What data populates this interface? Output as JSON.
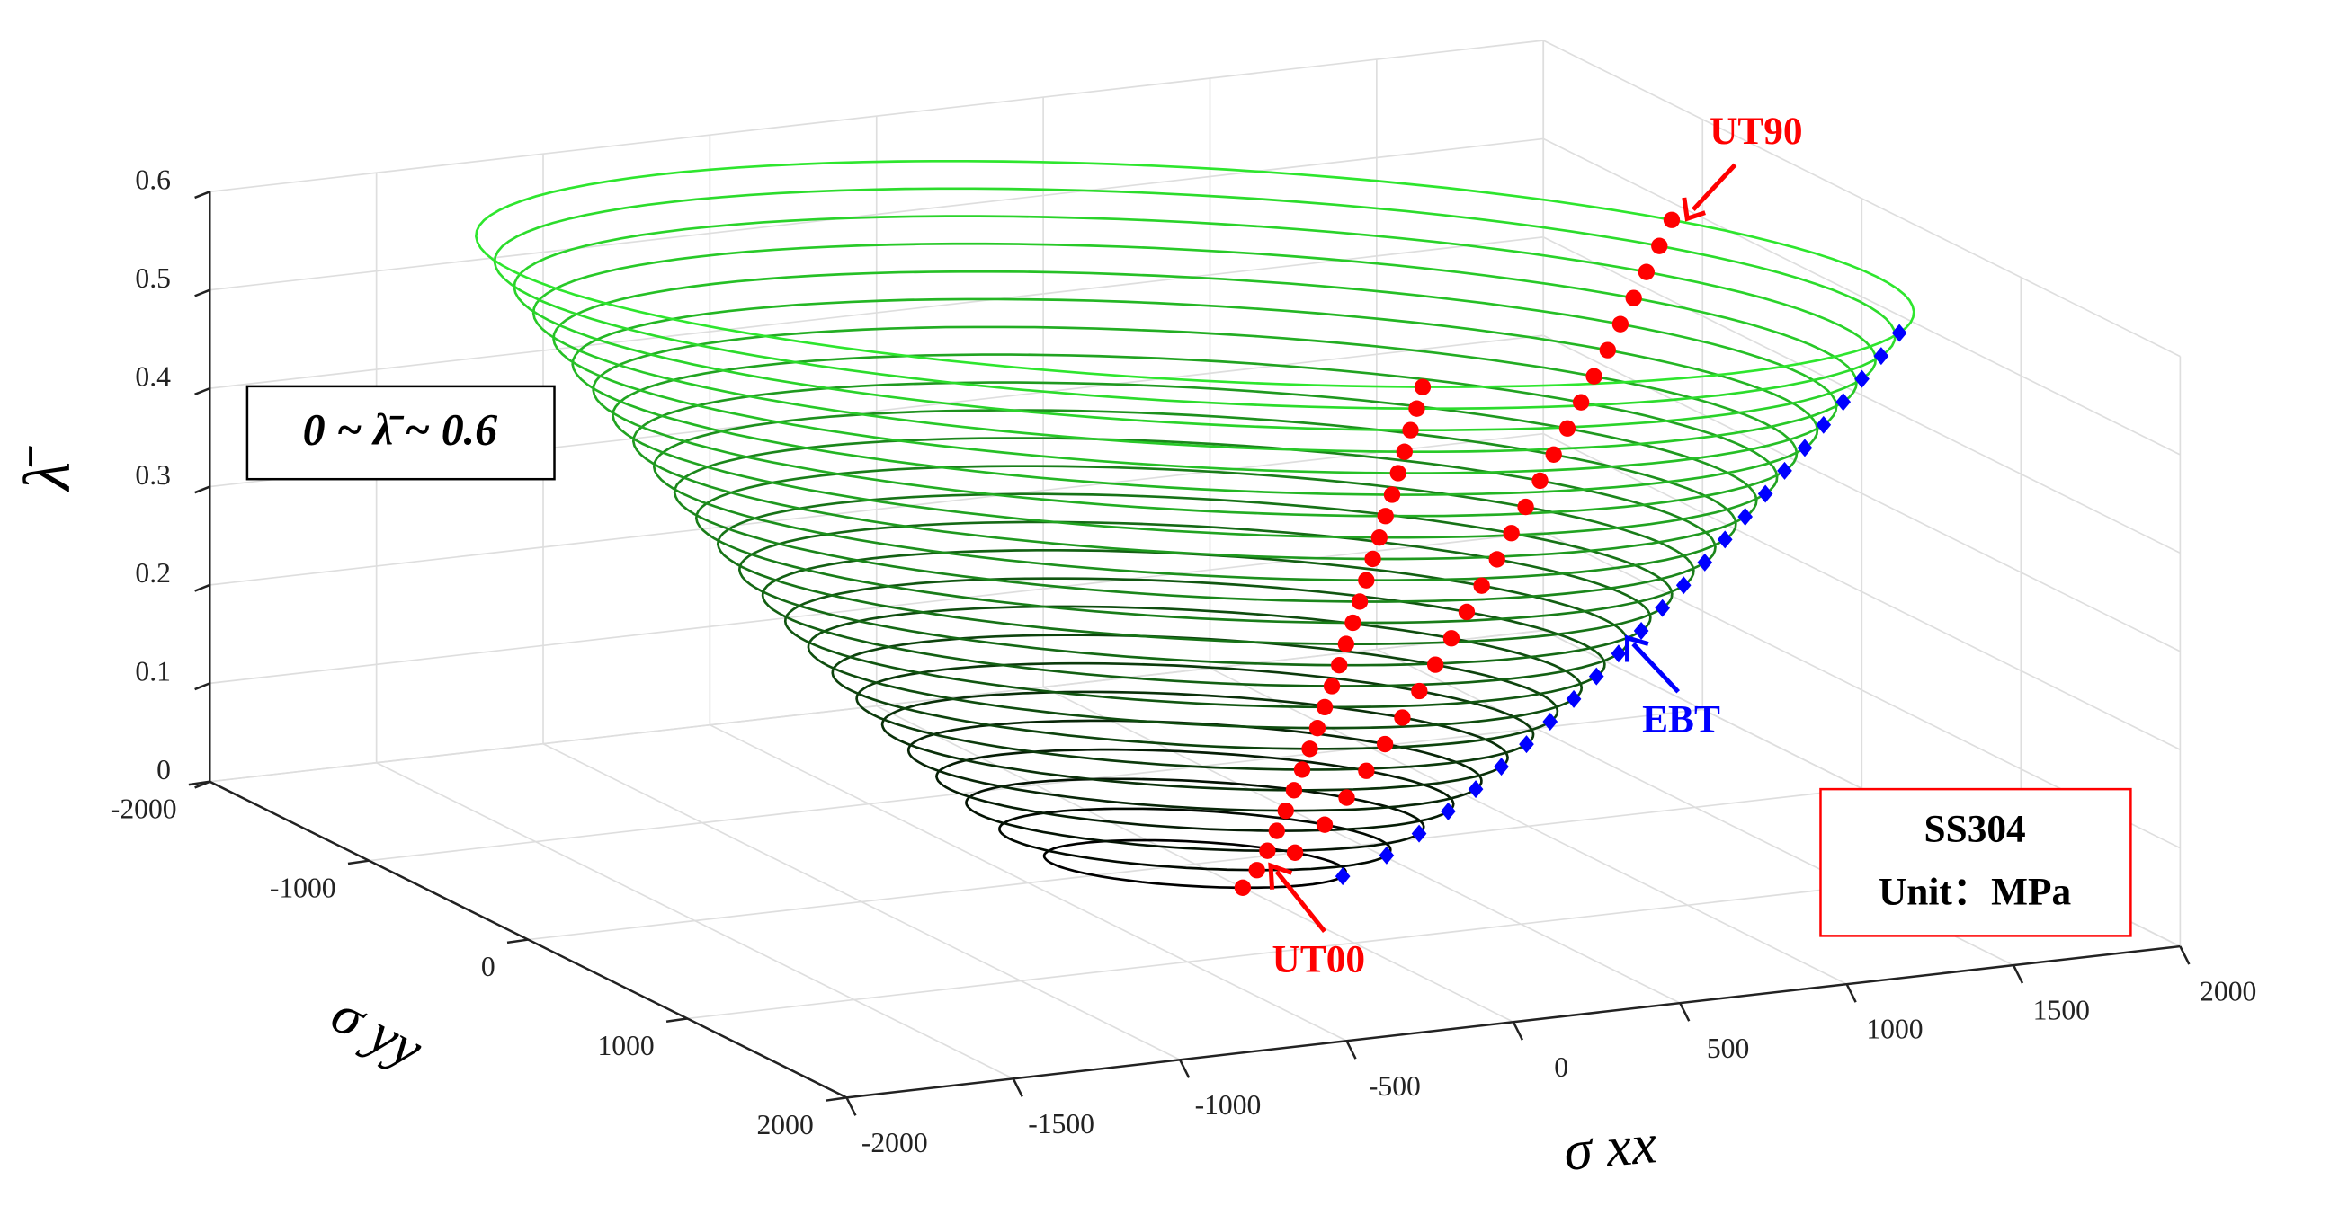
{
  "chart_data": {
    "type": "contour3d",
    "xlabel": "σ xx",
    "ylabel": "σ yy",
    "zlabel": "λ̄",
    "xlim": [
      -2000,
      2000
    ],
    "ylim": [
      -2000,
      2000
    ],
    "zlim": [
      0,
      0.6
    ],
    "xticks": [
      -2000,
      -1500,
      -1000,
      -500,
      0,
      500,
      1000,
      1500,
      2000
    ],
    "yticks": [
      -2000,
      -1000,
      0,
      1000,
      2000
    ],
    "zticks": [
      0,
      0.1,
      0.2,
      0.3,
      0.4,
      0.5,
      0.6
    ],
    "grid": true,
    "colormap": [
      "#000000",
      "#2ee62e"
    ],
    "contours": {
      "levels": [
        0,
        0.025,
        0.05,
        0.075,
        0.1,
        0.125,
        0.15,
        0.175,
        0.2,
        0.225,
        0.25,
        0.275,
        0.3,
        0.325,
        0.35,
        0.375,
        0.4,
        0.425,
        0.45,
        0.475,
        0.5,
        0.525,
        0.55,
        0.575,
        0.6
      ],
      "yield_stress": [
        300,
        389,
        455,
        514,
        570,
        622,
        673,
        721,
        769,
        815,
        860,
        906,
        949,
        992,
        1035,
        1076,
        1117,
        1158,
        1197,
        1238,
        1276,
        1316,
        1354,
        1393,
        1430
      ]
    },
    "series": [
      {
        "name": "UT00",
        "color": "#ff0000",
        "marker": "circle",
        "x": [
          0,
          0,
          0,
          0,
          0,
          0,
          0,
          0,
          0,
          0,
          0,
          0,
          0,
          0,
          0,
          0,
          0,
          0,
          0,
          0,
          0,
          0,
          0,
          0,
          0
        ],
        "y": [
          300,
          389,
          455,
          514,
          570,
          622,
          673,
          721,
          769,
          815,
          860,
          906,
          949,
          992,
          1035,
          1076,
          1117,
          1158,
          1197,
          1238,
          1276,
          1316,
          1354,
          1393,
          1430
        ],
        "z": [
          0,
          0.025,
          0.05,
          0.075,
          0.1,
          0.125,
          0.15,
          0.175,
          0.2,
          0.225,
          0.25,
          0.275,
          0.3,
          0.325,
          0.35,
          0.375,
          0.4,
          0.425,
          0.45,
          0.475,
          0.5,
          0.525,
          0.55,
          0.575,
          0.6
        ]
      },
      {
        "name": "UT90",
        "color": "#ff0000",
        "marker": "circle",
        "x": [
          300,
          389,
          455,
          514,
          570,
          622,
          673,
          721,
          769,
          815,
          860,
          906,
          949,
          992,
          1035,
          1076,
          1117,
          1158,
          1197,
          1238,
          1276,
          1316,
          1354,
          1393,
          1430
        ],
        "y": [
          0,
          0,
          0,
          0,
          0,
          0,
          0,
          0,
          0,
          0,
          0,
          0,
          0,
          0,
          0,
          0,
          0,
          0,
          0,
          0,
          0,
          0,
          0,
          0,
          0
        ],
        "z": [
          0,
          0.025,
          0.05,
          0.075,
          0.1,
          0.125,
          0.15,
          0.175,
          0.2,
          0.225,
          0.25,
          0.275,
          0.3,
          0.325,
          0.35,
          0.375,
          0.4,
          0.425,
          0.45,
          0.475,
          0.5,
          0.525,
          0.55,
          0.575,
          0.6
        ]
      },
      {
        "name": "EBT",
        "color": "#0000ff",
        "marker": "diamond",
        "x": [
          300,
          389,
          455,
          514,
          570,
          622,
          673,
          721,
          769,
          815,
          860,
          906,
          949,
          992,
          1035,
          1076,
          1117,
          1158,
          1197,
          1238,
          1276,
          1316,
          1354,
          1393,
          1430
        ],
        "y": [
          300,
          389,
          455,
          514,
          570,
          622,
          673,
          721,
          769,
          815,
          860,
          906,
          949,
          992,
          1035,
          1076,
          1117,
          1158,
          1197,
          1238,
          1276,
          1316,
          1354,
          1393,
          1430
        ],
        "z": [
          0,
          0.025,
          0.05,
          0.075,
          0.1,
          0.125,
          0.15,
          0.175,
          0.2,
          0.225,
          0.25,
          0.275,
          0.3,
          0.325,
          0.35,
          0.375,
          0.4,
          0.425,
          0.45,
          0.475,
          0.5,
          0.525,
          0.55,
          0.575,
          0.6
        ]
      }
    ],
    "range_label": "0 ~ λ̄ ~ 0.6",
    "material": "SS304",
    "unit": "Unit：MPa"
  }
}
